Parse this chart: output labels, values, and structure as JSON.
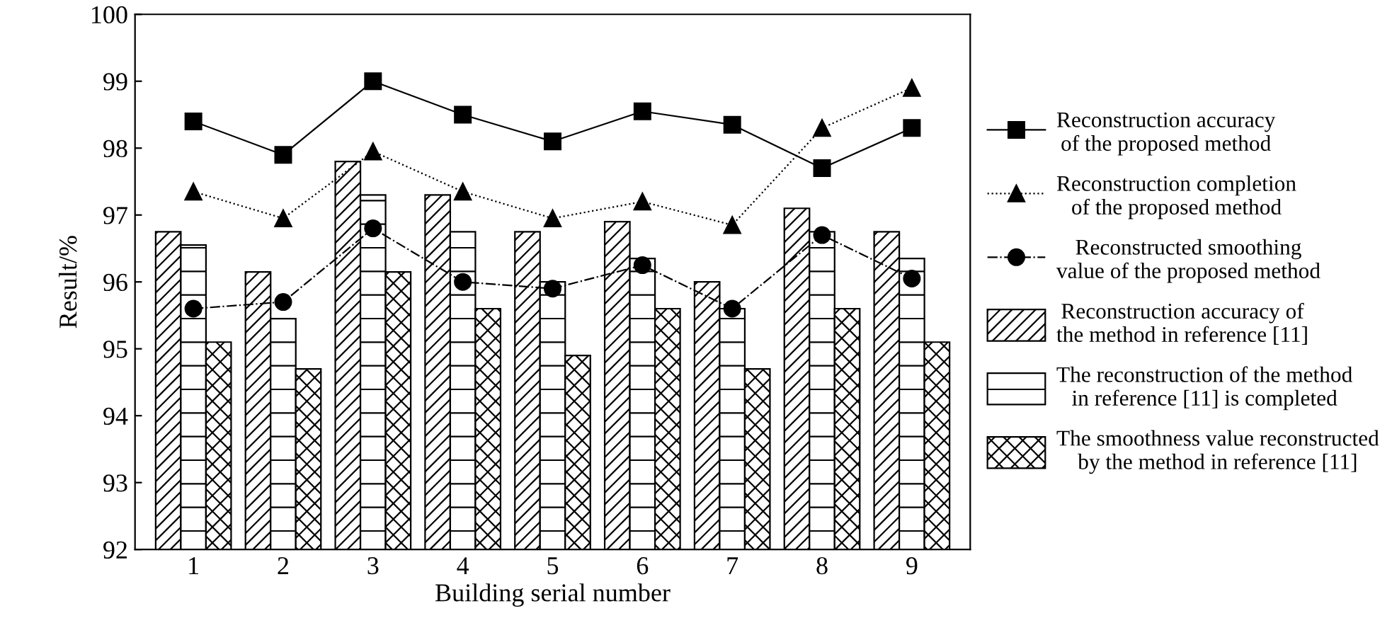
{
  "chart_data": {
    "type": "bar",
    "xlabel": "Building serial number",
    "ylabel": "Result/%",
    "categories": [
      "1",
      "2",
      "3",
      "4",
      "5",
      "6",
      "7",
      "8",
      "9"
    ],
    "ylim": [
      92,
      100
    ],
    "yticks": [
      92,
      93,
      94,
      95,
      96,
      97,
      98,
      99,
      100
    ],
    "grid": false,
    "legend": "right",
    "series": [
      {
        "name": "Reconstruction accuracy\nof the proposed method",
        "type": "line",
        "color": "#000000",
        "marker": "square",
        "line_style": "solid",
        "values": [
          98.4,
          97.9,
          99.0,
          98.5,
          98.1,
          98.55,
          98.35,
          97.7,
          98.3
        ]
      },
      {
        "name": "Reconstruction completion\nof the proposed method",
        "type": "line",
        "color": "#000000",
        "marker": "triangle",
        "line_style": "dotted",
        "values": [
          97.35,
          96.95,
          97.95,
          97.35,
          96.95,
          97.2,
          96.85,
          98.3,
          98.9
        ]
      },
      {
        "name": "Reconstructed smoothing\nvalue of the proposed method",
        "type": "line",
        "color": "#000000",
        "marker": "circle",
        "line_style": "dashdot",
        "values": [
          95.6,
          95.7,
          96.8,
          96.0,
          95.9,
          96.25,
          95.6,
          96.7,
          96.05
        ]
      },
      {
        "name": "Reconstruction accuracy of\nthe method in reference [11]",
        "color": "#000000",
        "values": [
          96.75,
          96.15,
          97.8,
          97.3,
          96.75,
          96.9,
          96.0,
          97.1,
          96.75
        ]
      },
      {
        "name": "The reconstruction of the method\nin reference [11] is completed",
        "color": "#000000",
        "values": [
          96.55,
          95.45,
          97.3,
          96.75,
          96.0,
          96.35,
          95.6,
          96.75,
          96.35
        ]
      },
      {
        "name": "The smoothness value reconstructed\nby the method in reference [11]",
        "color": "#000000",
        "values": [
          95.1,
          94.7,
          96.15,
          95.6,
          94.9,
          95.6,
          94.7,
          95.6,
          95.1
        ]
      }
    ]
  }
}
